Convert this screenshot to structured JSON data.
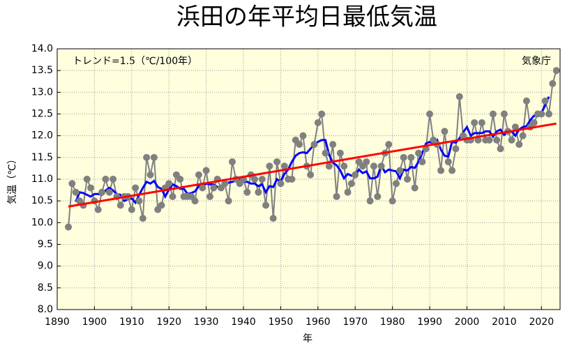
{
  "chart_data": {
    "type": "line",
    "title": "浜田の年平均日最低気温",
    "annotation": "トレンド=1.5（℃/100年）",
    "source": "気象庁",
    "xlabel": "年",
    "ylabel": "気温（℃）",
    "xlim": [
      1890,
      2025
    ],
    "ylim": [
      8,
      14
    ],
    "xticks": [
      1890,
      1900,
      1910,
      1920,
      1930,
      1940,
      1950,
      1960,
      1970,
      1980,
      1990,
      2000,
      2010,
      2020
    ],
    "yticks": [
      {
        "value": 8,
        "label": "8.0"
      },
      8.5,
      {
        "value": 9,
        "label": "9.0"
      },
      9.5,
      {
        "value": 10,
        "label": "10.0"
      },
      10.5,
      {
        "value": 11,
        "label": "11.0"
      },
      11.5,
      {
        "value": 12,
        "label": "12.0"
      },
      12.5,
      {
        "value": 13,
        "label": "13.0"
      },
      13.5,
      {
        "value": 14,
        "label": "14.0"
      }
    ],
    "grid": true,
    "series": [
      {
        "color": "#808080",
        "smooth_color": "#0000ff",
        "x": [
          1893,
          1894,
          1895,
          1896,
          1897,
          1898,
          1899,
          1900,
          1901,
          1902,
          1903,
          1904,
          1905,
          1906,
          1907,
          1908,
          1909,
          1910,
          1911,
          1912,
          1913,
          1914,
          1915,
          1916,
          1917,
          1918,
          1919,
          1920,
          1921,
          1922,
          1923,
          1924,
          1925,
          1926,
          1927,
          1928,
          1929,
          1930,
          1931,
          1932,
          1933,
          1934,
          1935,
          1936,
          1937,
          1938,
          1939,
          1940,
          1941,
          1942,
          1943,
          1944,
          1945,
          1946,
          1947,
          1948,
          1949,
          1950,
          1951,
          1952,
          1953,
          1954,
          1955,
          1956,
          1957,
          1958,
          1959,
          1960,
          1961,
          1962,
          1963,
          1964,
          1965,
          1966,
          1967,
          1968,
          1969,
          1970,
          1971,
          1972,
          1973,
          1974,
          1975,
          1976,
          1977,
          1978,
          1979,
          1980,
          1981,
          1982,
          1983,
          1984,
          1985,
          1986,
          1987,
          1988,
          1989,
          1990,
          1991,
          1992,
          1993,
          1994,
          1995,
          1996,
          1997,
          1998,
          1999,
          2000,
          2001,
          2002,
          2003,
          2004,
          2005,
          2006,
          2007,
          2008,
          2009,
          2010,
          2011,
          2012,
          2013,
          2014,
          2015,
          2016,
          2017,
          2018,
          2019,
          2020,
          2021,
          2022,
          2023,
          2024
        ],
        "values": [
          9.9,
          10.9,
          10.7,
          10.5,
          10.4,
          11.0,
          10.8,
          10.5,
          10.3,
          10.7,
          11.0,
          10.7,
          11.0,
          10.6,
          10.4,
          10.6,
          10.6,
          10.3,
          10.8,
          10.5,
          10.1,
          11.5,
          11.1,
          11.5,
          10.3,
          10.4,
          10.8,
          10.9,
          10.6,
          11.1,
          11.0,
          10.6,
          10.6,
          10.6,
          10.5,
          11.1,
          10.8,
          11.2,
          10.6,
          10.8,
          11.0,
          10.8,
          10.9,
          10.5,
          11.4,
          11.0,
          10.9,
          11.0,
          10.7,
          11.1,
          11.0,
          10.7,
          11.0,
          10.4,
          11.3,
          10.1,
          11.4,
          10.9,
          11.3,
          11.0,
          11.0,
          11.9,
          11.8,
          12.0,
          11.3,
          11.1,
          11.8,
          12.3,
          12.5,
          11.6,
          11.3,
          11.8,
          10.6,
          11.6,
          11.3,
          10.7,
          10.9,
          11.1,
          11.4,
          11.3,
          11.4,
          10.5,
          11.3,
          10.6,
          11.3,
          11.6,
          11.8,
          10.5,
          10.9,
          11.2,
          11.5,
          11.0,
          11.5,
          10.8,
          11.6,
          11.4,
          11.7,
          12.5,
          11.9,
          11.8,
          11.2,
          12.1,
          11.4,
          11.2,
          11.7,
          12.9,
          12.0,
          11.9,
          11.9,
          12.3,
          11.9,
          12.3,
          11.9,
          11.9,
          12.5,
          11.9,
          11.7,
          12.5,
          12.1,
          11.9,
          12.2,
          11.8,
          12.0,
          12.8,
          12.2,
          12.3,
          12.5,
          12.5,
          12.8,
          12.5,
          13.2,
          13.5
        ]
      },
      {
        "color": "#ff0000",
        "x": [
          1893,
          2024
        ],
        "values": [
          10.37,
          12.28
        ]
      }
    ]
  }
}
